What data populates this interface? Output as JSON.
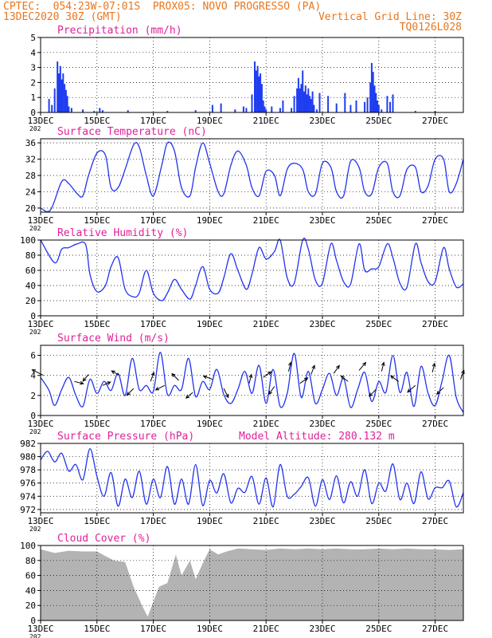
{
  "header": {
    "left_line1": "CPTEC:  054:23W-07:01S  PROX05: NOVO PROGRESSO (PA)",
    "left_line2": "13DEC2020 30Z (GMT)",
    "right_line2": "Vertical Grid Line: 30Z",
    "right_line3": "TQ0126L028",
    "color": "#e8761e"
  },
  "style": {
    "title_color": "#e0209a",
    "series_color": "#2233ee",
    "bar_color": "#1f3df0",
    "cloud_color": "#b3b3b3",
    "arrow_color": "#000000"
  },
  "x_axis": {
    "ticks": [
      {
        "day": 13,
        "label": "13DEC",
        "sub": "202"
      },
      {
        "day": 15,
        "label": "15DEC"
      },
      {
        "day": 17,
        "label": "17DEC"
      },
      {
        "day": 19,
        "label": "19DEC"
      },
      {
        "day": 21,
        "label": "21DEC"
      },
      {
        "day": 23,
        "label": "23DEC"
      },
      {
        "day": 25,
        "label": "25DEC"
      },
      {
        "day": 27,
        "label": "27DEC"
      }
    ],
    "range_days": [
      13,
      28
    ],
    "grid": "vertical dotted at 30Z"
  },
  "chart_data": [
    {
      "type": "bar",
      "title": "Precipitation  (mm/h)",
      "ylim": [
        0,
        5
      ],
      "yticks": [
        0,
        1,
        2,
        3,
        4,
        5
      ],
      "grid": true,
      "series": [
        {
          "x": [
            13.3,
            13.4,
            13.5,
            13.6,
            13.65,
            13.7,
            13.75,
            13.8,
            13.85,
            13.9,
            13.95,
            14.0,
            14.1,
            14.5,
            14.9,
            15.1,
            15.2,
            16.1,
            17.5,
            18.5,
            19.1,
            19.4,
            19.9,
            20.2,
            20.3,
            20.5,
            20.6,
            20.65,
            20.7,
            20.75,
            20.8,
            20.85,
            20.9,
            20.95,
            21.0,
            21.2,
            21.5,
            21.6,
            21.9,
            22.0,
            22.1,
            22.15,
            22.2,
            22.25,
            22.3,
            22.35,
            22.4,
            22.45,
            22.5,
            22.55,
            22.6,
            22.65,
            22.7,
            22.8,
            22.9,
            23.2,
            23.5,
            23.8,
            24.0,
            24.2,
            24.5,
            24.6,
            24.7,
            24.75,
            24.8,
            24.85,
            24.9,
            24.95,
            25.0,
            25.1,
            25.3,
            25.4,
            25.5,
            26.3,
            27.0
          ],
          "y": [
            0.9,
            0.5,
            1.6,
            3.4,
            2.6,
            3.1,
            2.2,
            2.6,
            1.9,
            1.5,
            1.1,
            0.4,
            0.3,
            0.2,
            0.1,
            0.3,
            0.15,
            0.15,
            0.1,
            0.15,
            0.5,
            0.6,
            0.2,
            0.4,
            0.3,
            1.2,
            3.4,
            2.8,
            3.1,
            2.4,
            2.6,
            1.9,
            0.8,
            0.4,
            0.2,
            0.4,
            0.3,
            0.8,
            0.3,
            1.1,
            1.6,
            2.3,
            1.6,
            1.9,
            2.8,
            1.4,
            1.8,
            1.2,
            1.6,
            1.1,
            0.9,
            1.4,
            0.5,
            0.2,
            1.3,
            1.1,
            0.6,
            1.3,
            0.5,
            0.8,
            0.7,
            1.0,
            2.0,
            3.3,
            2.7,
            1.8,
            1.3,
            0.8,
            0.5,
            0.2,
            1.1,
            0.7,
            1.2,
            0.1,
            0.1
          ]
        }
      ]
    },
    {
      "type": "line",
      "title": "Surface Temperature (nC)",
      "ylim": [
        19,
        37
      ],
      "yticks": [
        20,
        24,
        28,
        32,
        36
      ],
      "grid": true,
      "series": [
        {
          "x": [
            13.0,
            13.35,
            13.75,
            14.0,
            14.3,
            14.5,
            14.7,
            15.0,
            15.3,
            15.5,
            15.75,
            16.0,
            16.3,
            16.5,
            16.75,
            17.0,
            17.3,
            17.5,
            17.75,
            18.0,
            18.3,
            18.5,
            18.75,
            19.0,
            19.3,
            19.5,
            19.75,
            20.0,
            20.3,
            20.5,
            20.75,
            21.0,
            21.3,
            21.5,
            21.75,
            22.0,
            22.3,
            22.5,
            22.75,
            23.0,
            23.3,
            23.5,
            23.75,
            24.0,
            24.3,
            24.5,
            24.75,
            25.0,
            25.3,
            25.5,
            25.75,
            26.0,
            26.3,
            26.5,
            26.75,
            27.0,
            27.3,
            27.5,
            27.75,
            28.0
          ],
          "y": [
            20,
            19.5,
            26.5,
            26,
            23.5,
            23,
            28,
            33.5,
            33,
            25,
            25,
            29.5,
            35.5,
            35,
            28,
            23,
            30.5,
            36,
            34,
            25,
            23,
            30,
            36,
            31,
            24,
            23.5,
            30.5,
            34,
            30.5,
            25,
            23,
            29,
            28,
            23,
            29.5,
            31,
            29.5,
            24,
            23.5,
            31,
            30,
            24,
            23,
            31.5,
            30,
            24,
            23.5,
            30,
            31,
            24,
            23,
            29.5,
            30,
            24,
            25.5,
            32,
            32,
            24,
            26,
            32
          ]
        }
      ]
    },
    {
      "type": "line",
      "title": "Relative Humidity  (%)",
      "ylim": [
        0,
        100
      ],
      "yticks": [
        0,
        20,
        40,
        60,
        80,
        100
      ],
      "grid": true,
      "series": [
        {
          "x": [
            13.0,
            13.5,
            13.75,
            14.0,
            14.3,
            14.6,
            14.75,
            15.0,
            15.3,
            15.5,
            15.75,
            16.0,
            16.3,
            16.5,
            16.75,
            17.0,
            17.3,
            17.5,
            17.75,
            18.0,
            18.3,
            18.5,
            18.75,
            19.0,
            19.3,
            19.5,
            19.75,
            20.0,
            20.3,
            20.5,
            20.75,
            21.0,
            21.3,
            21.5,
            21.75,
            22.0,
            22.3,
            22.5,
            22.75,
            23.0,
            23.3,
            23.5,
            23.75,
            24.0,
            24.3,
            24.5,
            24.75,
            25.0,
            25.3,
            25.5,
            25.75,
            26.0,
            26.3,
            26.5,
            26.75,
            27.0,
            27.3,
            27.5,
            27.75,
            28.0
          ],
          "y": [
            100,
            70,
            88,
            90,
            95,
            94,
            55,
            32,
            40,
            65,
            77,
            35,
            25,
            30,
            60,
            30,
            20,
            30,
            48,
            35,
            22,
            40,
            65,
            35,
            30,
            50,
            82,
            60,
            35,
            55,
            90,
            75,
            85,
            100,
            50,
            43,
            100,
            88,
            47,
            43,
            95,
            73,
            45,
            42,
            95,
            60,
            62,
            65,
            95,
            77,
            43,
            38,
            95,
            70,
            45,
            45,
            90,
            62,
            38,
            42
          ]
        }
      ]
    },
    {
      "type": "line",
      "title": "Surface Wind  (m/s)",
      "ylim": [
        0,
        7
      ],
      "yticks": [
        0,
        2,
        4,
        6
      ],
      "grid": true,
      "series": [
        {
          "x": [
            13.0,
            13.3,
            13.5,
            13.75,
            14.0,
            14.25,
            14.5,
            14.75,
            15.0,
            15.25,
            15.5,
            15.75,
            16.0,
            16.25,
            16.5,
            16.75,
            17.0,
            17.25,
            17.5,
            17.75,
            18.0,
            18.25,
            18.5,
            18.75,
            19.0,
            19.25,
            19.5,
            19.75,
            20.0,
            20.25,
            20.5,
            20.75,
            21.0,
            21.25,
            21.5,
            21.75,
            22.0,
            22.25,
            22.5,
            22.75,
            23.0,
            23.25,
            23.5,
            23.75,
            24.0,
            24.25,
            24.5,
            24.75,
            25.0,
            25.25,
            25.5,
            25.75,
            26.0,
            26.25,
            26.5,
            26.75,
            27.0,
            27.25,
            27.5,
            27.75,
            28.0
          ],
          "y": [
            3.8,
            2.5,
            1.0,
            2.6,
            3.8,
            2.0,
            0.9,
            3.6,
            2.2,
            3.4,
            2.5,
            4.2,
            2.0,
            5.7,
            2.6,
            3.0,
            2.4,
            6.3,
            2.1,
            3.0,
            2.6,
            5.7,
            1.9,
            3.4,
            2.6,
            4.6,
            2.1,
            1.2,
            2.6,
            4.4,
            2.2,
            5.0,
            1.2,
            4.6,
            0.9,
            2.2,
            6.2,
            1.8,
            4.4,
            1.2,
            2.6,
            4.2,
            2.0,
            3.7,
            0.8,
            2.6,
            4.3,
            1.4,
            3.4,
            2.3,
            6.0,
            2.3,
            4.3,
            0.9,
            4.9,
            2.2,
            1.0,
            3.5,
            6.0,
            1.8,
            0.3
          ]
        }
      ],
      "wind_vectors": [
        {
          "x": 13.1,
          "y": 4.0,
          "u": -1,
          "v": 0.5
        },
        {
          "x": 14.2,
          "y": 3.4,
          "u": 0.8,
          "v": -0.2
        },
        {
          "x": 14.7,
          "y": 4.1,
          "u": -0.5,
          "v": -0.6
        },
        {
          "x": 15.2,
          "y": 3.0,
          "u": 0.7,
          "v": 0.3
        },
        {
          "x": 15.8,
          "y": 4.0,
          "u": -0.7,
          "v": 0.4
        },
        {
          "x": 16.3,
          "y": 2.7,
          "u": -0.6,
          "v": -0.6
        },
        {
          "x": 16.9,
          "y": 3.4,
          "u": 0.3,
          "v": 0.8
        },
        {
          "x": 17.4,
          "y": 3.0,
          "u": -0.8,
          "v": -0.4
        },
        {
          "x": 17.9,
          "y": 3.5,
          "u": -0.6,
          "v": 0.6
        },
        {
          "x": 18.4,
          "y": 2.3,
          "u": -0.6,
          "v": -0.5
        },
        {
          "x": 19.1,
          "y": 3.6,
          "u": -0.8,
          "v": 0.3
        },
        {
          "x": 19.5,
          "y": 2.7,
          "u": 0.4,
          "v": -0.8
        },
        {
          "x": 20.4,
          "y": 3.2,
          "u": 0.2,
          "v": 0.8
        },
        {
          "x": 20.9,
          "y": 3.8,
          "u": 0.7,
          "v": 0.5
        },
        {
          "x": 21.3,
          "y": 2.9,
          "u": -0.5,
          "v": -0.7
        },
        {
          "x": 21.8,
          "y": 4.4,
          "u": 0.2,
          "v": 0.8
        },
        {
          "x": 22.2,
          "y": 3.2,
          "u": 0.7,
          "v": 0.5
        },
        {
          "x": 22.6,
          "y": 4.1,
          "u": 0.3,
          "v": 0.8
        },
        {
          "x": 23.4,
          "y": 4.2,
          "u": 0.5,
          "v": 0.7
        },
        {
          "x": 23.9,
          "y": 3.4,
          "u": -0.6,
          "v": 0.5
        },
        {
          "x": 24.3,
          "y": 4.5,
          "u": 0.6,
          "v": 0.7
        },
        {
          "x": 24.9,
          "y": 2.6,
          "u": -0.6,
          "v": -0.6
        },
        {
          "x": 25.1,
          "y": 4.4,
          "u": 0.2,
          "v": 0.8
        },
        {
          "x": 25.7,
          "y": 3.4,
          "u": -0.7,
          "v": 0.5
        },
        {
          "x": 26.3,
          "y": 3.0,
          "u": -0.7,
          "v": -0.6
        },
        {
          "x": 26.9,
          "y": 4.3,
          "u": 0.2,
          "v": 0.8
        },
        {
          "x": 27.3,
          "y": 2.8,
          "u": -0.6,
          "v": -0.6
        },
        {
          "x": 27.9,
          "y": 3.6,
          "u": 0.3,
          "v": 0.8
        }
      ]
    },
    {
      "type": "line",
      "title": "Surface Pressure  (hPa)",
      "annotation": "Model Altitude: 280.132  m",
      "ylim": [
        971.5,
        982
      ],
      "yticks": [
        972,
        974,
        976,
        978,
        980,
        982
      ],
      "grid": true,
      "series": [
        {
          "x": [
            13.0,
            13.25,
            13.5,
            13.75,
            14.0,
            14.25,
            14.5,
            14.75,
            15.0,
            15.25,
            15.5,
            15.75,
            16.0,
            16.25,
            16.5,
            16.75,
            17.0,
            17.25,
            17.5,
            17.75,
            18.0,
            18.25,
            18.5,
            18.75,
            19.0,
            19.25,
            19.5,
            19.75,
            20.0,
            20.25,
            20.5,
            20.75,
            21.0,
            21.25,
            21.5,
            21.75,
            22.0,
            22.25,
            22.5,
            22.75,
            23.0,
            23.25,
            23.5,
            23.75,
            24.0,
            24.25,
            24.5,
            24.75,
            25.0,
            25.25,
            25.5,
            25.75,
            26.0,
            26.25,
            26.5,
            26.75,
            27.0,
            27.25,
            27.5,
            27.75,
            28.0
          ],
          "y": [
            979.5,
            980.8,
            979.2,
            980.5,
            977.8,
            978.8,
            976.5,
            981.2,
            977.0,
            974.0,
            977.6,
            972.5,
            976.6,
            973.8,
            977.8,
            972.8,
            976.6,
            973.8,
            978.5,
            972.8,
            976.6,
            972.8,
            978.8,
            972.6,
            976.4,
            974.5,
            977.4,
            973.0,
            975.2,
            974.6,
            977.0,
            972.8,
            976.8,
            972.4,
            978.8,
            974.0,
            974.3,
            975.5,
            976.8,
            972.5,
            976.5,
            973.5,
            977.1,
            973.0,
            976.2,
            974.0,
            978.0,
            972.9,
            976.0,
            974.8,
            978.9,
            973.5,
            976.0,
            972.9,
            977.7,
            973.6,
            975.3,
            975.3,
            976.3,
            972.4,
            974.5
          ]
        }
      ]
    },
    {
      "type": "area",
      "title": "Cloud Cover  (%)",
      "ylim": [
        0,
        100
      ],
      "yticks": [
        0,
        20,
        40,
        60,
        80,
        100
      ],
      "grid": true,
      "series": [
        {
          "x": [
            13.0,
            13.5,
            14.0,
            14.5,
            15.0,
            15.3,
            15.6,
            16.0,
            16.3,
            16.6,
            16.8,
            17.0,
            17.2,
            17.5,
            17.8,
            18.0,
            18.3,
            18.5,
            18.8,
            19.0,
            19.3,
            19.6,
            20.0,
            20.5,
            21.0,
            21.5,
            22.0,
            22.5,
            23.0,
            23.5,
            24.0,
            24.5,
            25.0,
            25.5,
            26.0,
            26.5,
            27.0,
            27.5,
            28.0
          ],
          "y": [
            95,
            90,
            93,
            92,
            92,
            86,
            80,
            78,
            45,
            20,
            5,
            25,
            45,
            50,
            88,
            60,
            80,
            55,
            80,
            95,
            88,
            92,
            96,
            95,
            94,
            96,
            95,
            96,
            95,
            96,
            95,
            95,
            96,
            95,
            96,
            95,
            95,
            94,
            95
          ]
        }
      ]
    }
  ]
}
